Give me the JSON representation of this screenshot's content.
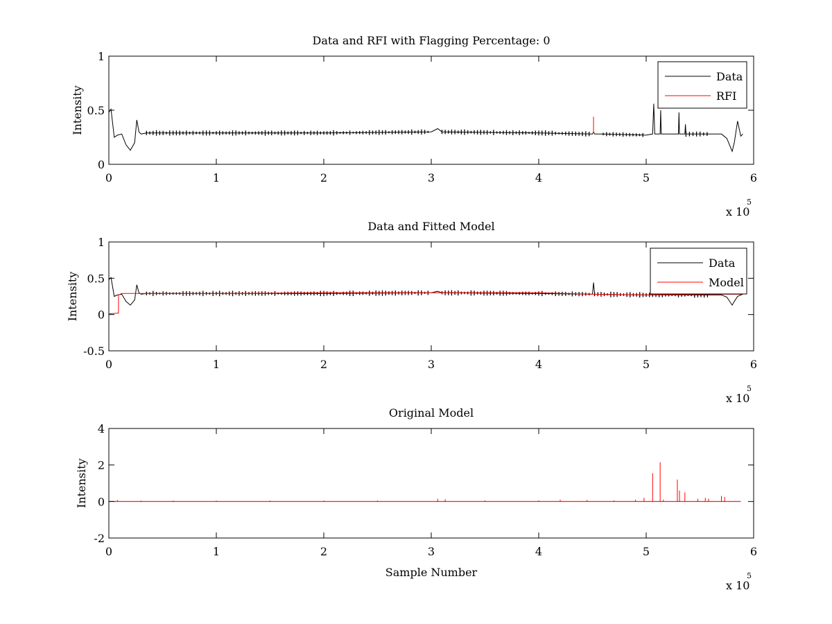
{
  "chart_data": [
    {
      "type": "line",
      "title": "Data and RFI with Flagging Percentage: 0",
      "xlabel": "",
      "ylabel": "Intensity",
      "xlim": [
        0,
        600000
      ],
      "ylim": [
        0,
        1
      ],
      "xticks": [
        0,
        1,
        2,
        3,
        4,
        5,
        6
      ],
      "xtick_labels": [
        "0",
        "1",
        "2",
        "3",
        "4",
        "5",
        "6"
      ],
      "yticks": [
        0,
        0.5,
        1
      ],
      "ytick_labels": [
        "0",
        "0.5",
        "1"
      ],
      "x_multiplier": {
        "base": "x 10",
        "exponent": "5"
      },
      "legend": {
        "position": "top-right",
        "entries": [
          "Data",
          "RFI"
        ]
      },
      "grid": false,
      "series": [
        {
          "name": "Data",
          "color": "#000000",
          "baseline": 0.29,
          "x": [
            0,
            2000,
            5000,
            8000,
            12000,
            16000,
            20000,
            24000,
            26000,
            28000,
            30000,
            35000,
            100000,
            200000,
            300000,
            306000,
            310000,
            400000,
            450000,
            451000,
            452000,
            460000,
            500000,
            506000,
            507000,
            508000,
            513000,
            513500,
            514000,
            530000,
            530500,
            531000,
            536000,
            536500,
            537000,
            560000,
            570000,
            575000,
            580000,
            582000,
            585000,
            588000,
            590000
          ],
          "y": [
            0.48,
            0.51,
            0.25,
            0.27,
            0.28,
            0.18,
            0.13,
            0.2,
            0.41,
            0.3,
            0.28,
            0.29,
            0.29,
            0.29,
            0.3,
            0.33,
            0.3,
            0.29,
            0.28,
            0.3,
            0.28,
            0.28,
            0.27,
            0.28,
            0.56,
            0.28,
            0.28,
            0.5,
            0.28,
            0.28,
            0.48,
            0.28,
            0.28,
            0.37,
            0.28,
            0.28,
            0.28,
            0.24,
            0.12,
            0.2,
            0.4,
            0.26,
            0.28
          ]
        },
        {
          "name": "RFI",
          "color": "#ff0000",
          "spikes": [
            {
              "x": 451000,
              "y": 0.44
            }
          ]
        }
      ]
    },
    {
      "type": "line",
      "title": "Data and Fitted Model",
      "xlabel": "",
      "ylabel": "Intensity",
      "xlim": [
        0,
        600000
      ],
      "ylim": [
        -0.5,
        1
      ],
      "xticks": [
        0,
        1,
        2,
        3,
        4,
        5,
        6
      ],
      "xtick_labels": [
        "0",
        "1",
        "2",
        "3",
        "4",
        "5",
        "6"
      ],
      "yticks": [
        -0.5,
        0,
        0.5,
        1
      ],
      "ytick_labels": [
        "-0.5",
        "0",
        "0.5",
        "1"
      ],
      "x_multiplier": {
        "base": "x 10",
        "exponent": "5"
      },
      "legend": {
        "position": "top-right",
        "entries": [
          "Data",
          "Model"
        ]
      },
      "grid": false,
      "series": [
        {
          "name": "Data",
          "color": "#000000",
          "x": [
            0,
            2000,
            5000,
            8000,
            12000,
            16000,
            20000,
            24000,
            26000,
            28000,
            30000,
            35000,
            100000,
            200000,
            300000,
            306000,
            310000,
            400000,
            450000,
            451000,
            452000,
            500000,
            560000,
            570000,
            575000,
            580000,
            582000,
            585000,
            588000,
            590000
          ],
          "y": [
            0.48,
            0.51,
            0.25,
            0.27,
            0.28,
            0.18,
            0.13,
            0.2,
            0.41,
            0.3,
            0.28,
            0.29,
            0.29,
            0.29,
            0.3,
            0.32,
            0.3,
            0.29,
            0.28,
            0.44,
            0.28,
            0.27,
            0.27,
            0.27,
            0.24,
            0.13,
            0.18,
            0.25,
            0.27,
            0.28
          ]
        },
        {
          "name": "Model",
          "color": "#ff0000",
          "x": [
            0,
            9000,
            9000,
            12000,
            100000,
            200000,
            300000,
            400000,
            450000,
            500000,
            560000,
            590000
          ],
          "y": [
            0.01,
            0.02,
            0.27,
            0.29,
            0.29,
            0.3,
            0.3,
            0.3,
            0.28,
            0.27,
            0.28,
            0.28
          ]
        }
      ]
    },
    {
      "type": "line",
      "title": "Original Model",
      "xlabel": "Sample Number",
      "ylabel": "Intensity",
      "xlim": [
        0,
        600000
      ],
      "ylim": [
        -2,
        4
      ],
      "xticks": [
        0,
        1,
        2,
        3,
        4,
        5,
        6
      ],
      "xtick_labels": [
        "0",
        "1",
        "2",
        "3",
        "4",
        "5",
        "6"
      ],
      "yticks": [
        -2,
        0,
        2,
        4
      ],
      "ytick_labels": [
        "-2",
        "0",
        "2",
        "4"
      ],
      "x_multiplier": {
        "base": "x 10",
        "exponent": "5"
      },
      "grid": false,
      "series": [
        {
          "name": "Model",
          "color": "#ff0000",
          "baseline": 0,
          "x_end": 588000,
          "spikes": [
            {
              "x": 8000,
              "y": 0.08
            },
            {
              "x": 30000,
              "y": 0.05
            },
            {
              "x": 60000,
              "y": 0.05
            },
            {
              "x": 100000,
              "y": 0.05
            },
            {
              "x": 150000,
              "y": 0.05
            },
            {
              "x": 200000,
              "y": 0.05
            },
            {
              "x": 250000,
              "y": 0.05
            },
            {
              "x": 306000,
              "y": 0.15
            },
            {
              "x": 313000,
              "y": 0.12
            },
            {
              "x": 350000,
              "y": 0.06
            },
            {
              "x": 400000,
              "y": 0.06
            },
            {
              "x": 420000,
              "y": 0.1
            },
            {
              "x": 445000,
              "y": 0.08
            },
            {
              "x": 470000,
              "y": 0.06
            },
            {
              "x": 490000,
              "y": 0.1
            },
            {
              "x": 498000,
              "y": 0.2
            },
            {
              "x": 506000,
              "y": 1.55
            },
            {
              "x": 513000,
              "y": 2.15
            },
            {
              "x": 516000,
              "y": 0.1
            },
            {
              "x": 529000,
              "y": 1.2
            },
            {
              "x": 531000,
              "y": 0.6
            },
            {
              "x": 536000,
              "y": 0.5
            },
            {
              "x": 548000,
              "y": 0.15
            },
            {
              "x": 555000,
              "y": 0.2
            },
            {
              "x": 558000,
              "y": 0.15
            },
            {
              "x": 570000,
              "y": 0.3
            },
            {
              "x": 573000,
              "y": 0.25
            }
          ]
        }
      ]
    }
  ]
}
